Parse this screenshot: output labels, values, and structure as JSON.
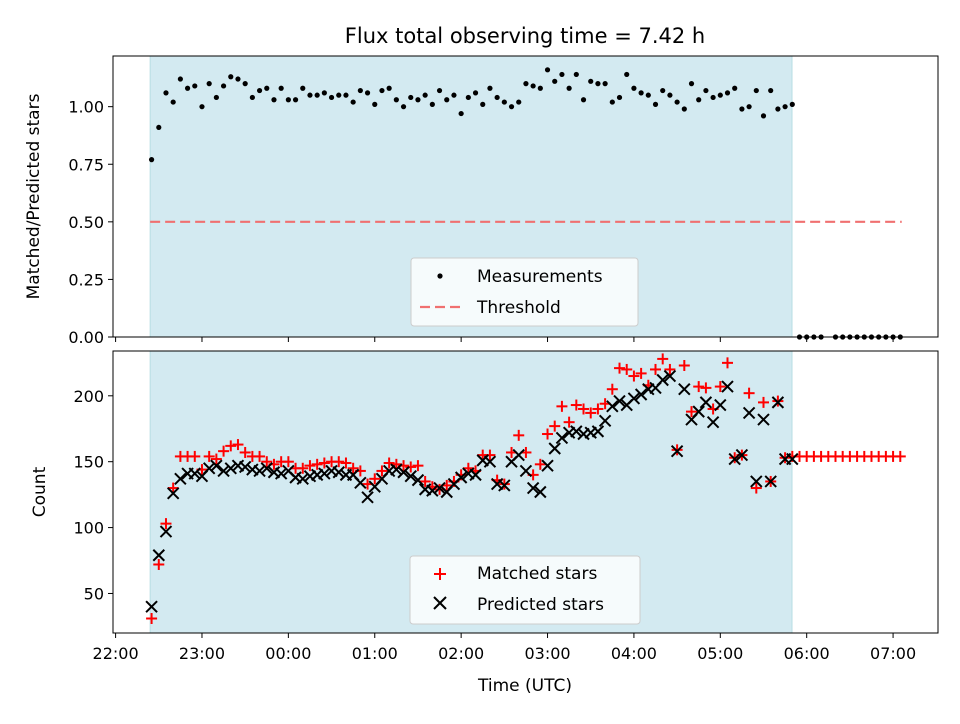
{
  "title": "Flux total observing time = 7.42 h",
  "chart_data": [
    {
      "type": "scatter",
      "ylabel": "Matched/Predicted stars",
      "ylim": [
        0.0,
        1.22
      ],
      "yticks": [
        0.0,
        0.25,
        0.5,
        0.75,
        1.0
      ],
      "ytick_labels": [
        "0.00",
        "0.25",
        "0.50",
        "0.75",
        "1.00"
      ],
      "shaded_interval_hours": [
        22.4,
        5.83
      ],
      "shaded_color": "#d3eaf1",
      "threshold": {
        "name": "Threshold",
        "value": 0.5,
        "x_range_hours": [
          22.4,
          7.1
        ],
        "color": "#f07070"
      },
      "series": [
        {
          "name": "Measurements",
          "color": "#000000",
          "x": [
            "22:25",
            "22:30",
            "22:35",
            "22:40",
            "22:45",
            "22:50",
            "22:55",
            "23:00",
            "23:05",
            "23:10",
            "23:15",
            "23:20",
            "23:25",
            "23:30",
            "23:35",
            "23:40",
            "23:45",
            "23:50",
            "23:55",
            "00:00",
            "00:05",
            "00:10",
            "00:15",
            "00:20",
            "00:25",
            "00:30",
            "00:35",
            "00:40",
            "00:45",
            "00:50",
            "00:55",
            "01:00",
            "01:05",
            "01:10",
            "01:15",
            "01:20",
            "01:25",
            "01:30",
            "01:35",
            "01:40",
            "01:45",
            "01:50",
            "01:55",
            "02:00",
            "02:05",
            "02:10",
            "02:15",
            "02:20",
            "02:25",
            "02:30",
            "02:35",
            "02:40",
            "02:45",
            "02:50",
            "02:55",
            "03:00",
            "03:05",
            "03:10",
            "03:15",
            "03:20",
            "03:25",
            "03:30",
            "03:35",
            "03:40",
            "03:45",
            "03:50",
            "03:55",
            "04:00",
            "04:05",
            "04:10",
            "04:15",
            "04:20",
            "04:25",
            "04:30",
            "04:35",
            "04:40",
            "04:45",
            "04:50",
            "04:55",
            "05:00",
            "05:05",
            "05:10",
            "05:15",
            "05:20",
            "05:25",
            "05:30",
            "05:35",
            "05:40",
            "05:45",
            "05:50",
            "05:55",
            "06:00",
            "06:05",
            "06:10",
            "06:20",
            "06:25",
            "06:30",
            "06:35",
            "06:40",
            "06:45",
            "06:50",
            "06:55",
            "07:00",
            "07:05"
          ],
          "y": [
            0.77,
            0.91,
            1.06,
            1.02,
            1.12,
            1.08,
            1.09,
            1.0,
            1.1,
            1.04,
            1.09,
            1.13,
            1.12,
            1.1,
            1.04,
            1.07,
            1.08,
            1.03,
            1.08,
            1.03,
            1.03,
            1.08,
            1.05,
            1.05,
            1.06,
            1.04,
            1.05,
            1.05,
            1.02,
            1.07,
            1.06,
            1.01,
            1.07,
            1.08,
            1.03,
            1.0,
            1.04,
            1.03,
            1.05,
            1.01,
            1.07,
            1.03,
            1.05,
            0.97,
            1.04,
            1.06,
            1.01,
            1.08,
            1.04,
            1.02,
            1.0,
            1.02,
            1.1,
            1.09,
            1.08,
            1.16,
            1.11,
            1.14,
            1.08,
            1.14,
            1.03,
            1.11,
            1.1,
            1.1,
            1.02,
            1.04,
            1.14,
            1.08,
            1.06,
            1.05,
            1.01,
            1.07,
            1.05,
            1.02,
            0.99,
            1.1,
            1.03,
            1.07,
            1.04,
            1.05,
            1.06,
            1.08,
            0.99,
            1.0,
            1.07,
            0.96,
            1.07,
            0.99,
            1.0,
            1.01,
            0.0,
            0.0,
            0.0,
            0.0,
            0.0,
            0.0,
            0.0,
            0.0,
            0.0,
            0.0,
            0.0,
            0.0,
            0.0,
            0.0
          ]
        }
      ],
      "legend": {
        "placement": "lower center",
        "entries": [
          "Measurements",
          "Threshold"
        ]
      }
    },
    {
      "type": "scatter",
      "xlabel": "Time (UTC)",
      "ylabel": "Count",
      "ylim": [
        20,
        234
      ],
      "yticks": [
        50,
        100,
        150,
        200
      ],
      "ytick_labels": [
        "50",
        "100",
        "150",
        "200"
      ],
      "xticks": [
        "22:00",
        "23:00",
        "00:00",
        "01:00",
        "02:00",
        "03:00",
        "04:00",
        "05:00",
        "06:00",
        "07:00"
      ],
      "xlim_hours": [
        21.97,
        7.52
      ],
      "shaded_interval_hours": [
        22.4,
        5.83
      ],
      "series": [
        {
          "name": "Matched stars",
          "marker": "plus",
          "color": "#ff0000",
          "x": [
            "22:25",
            "22:30",
            "22:35",
            "22:40",
            "22:45",
            "22:50",
            "22:55",
            "23:00",
            "23:05",
            "23:10",
            "23:15",
            "23:20",
            "23:25",
            "23:30",
            "23:35",
            "23:40",
            "23:45",
            "23:50",
            "23:55",
            "00:00",
            "00:05",
            "00:10",
            "00:15",
            "00:20",
            "00:25",
            "00:30",
            "00:35",
            "00:40",
            "00:45",
            "00:50",
            "00:55",
            "01:00",
            "01:05",
            "01:10",
            "01:15",
            "01:20",
            "01:25",
            "01:30",
            "01:35",
            "01:40",
            "01:45",
            "01:50",
            "01:55",
            "02:00",
            "02:05",
            "02:10",
            "02:15",
            "02:20",
            "02:25",
            "02:30",
            "02:35",
            "02:40",
            "02:45",
            "02:50",
            "02:55",
            "03:00",
            "03:05",
            "03:10",
            "03:15",
            "03:20",
            "03:25",
            "03:30",
            "03:35",
            "03:40",
            "03:45",
            "03:50",
            "03:55",
            "04:00",
            "04:05",
            "04:10",
            "04:15",
            "04:20",
            "04:25",
            "04:30",
            "04:35",
            "04:40",
            "04:45",
            "04:50",
            "04:55",
            "05:00",
            "05:05",
            "05:10",
            "05:15",
            "05:20",
            "05:25",
            "05:30",
            "05:35",
            "05:40",
            "05:45",
            "05:50",
            "05:55",
            "06:00",
            "06:05",
            "06:10",
            "06:15",
            "06:20",
            "06:25",
            "06:30",
            "06:35",
            "06:40",
            "06:45",
            "06:50",
            "06:55",
            "07:00",
            "07:05"
          ],
          "y": [
            31,
            72,
            103,
            130,
            154,
            154,
            154,
            144,
            154,
            152,
            158,
            162,
            163,
            157,
            154,
            154,
            150,
            148,
            150,
            150,
            145,
            145,
            147,
            148,
            149,
            150,
            150,
            149,
            145,
            143,
            133,
            137,
            143,
            149,
            148,
            147,
            146,
            147,
            135,
            131,
            129,
            132,
            135,
            140,
            145,
            143,
            155,
            155,
            136,
            133,
            157,
            170,
            157,
            140,
            148,
            171,
            177,
            192,
            180,
            193,
            190,
            187,
            190,
            194,
            205,
            221,
            220,
            215,
            217,
            208,
            220,
            228,
            220,
            159,
            223,
            188,
            207,
            206,
            190,
            207,
            225,
            153,
            155,
            202,
            130,
            195,
            135,
            196,
            153,
            154,
            154,
            154,
            154,
            154,
            154,
            154,
            154,
            154,
            154,
            154,
            154,
            154,
            154,
            154,
            154
          ]
        },
        {
          "name": "Predicted stars",
          "marker": "x",
          "color": "#000000",
          "x": [
            "22:25",
            "22:30",
            "22:35",
            "22:40",
            "22:45",
            "22:50",
            "22:55",
            "23:00",
            "23:05",
            "23:10",
            "23:15",
            "23:20",
            "23:25",
            "23:30",
            "23:35",
            "23:40",
            "23:45",
            "23:50",
            "23:55",
            "00:00",
            "00:05",
            "00:10",
            "00:15",
            "00:20",
            "00:25",
            "00:30",
            "00:35",
            "00:40",
            "00:45",
            "00:50",
            "00:55",
            "01:00",
            "01:05",
            "01:10",
            "01:15",
            "01:20",
            "01:25",
            "01:30",
            "01:35",
            "01:40",
            "01:45",
            "01:50",
            "01:55",
            "02:00",
            "02:05",
            "02:10",
            "02:15",
            "02:20",
            "02:25",
            "02:30",
            "02:35",
            "02:40",
            "02:45",
            "02:50",
            "02:55",
            "03:00",
            "03:05",
            "03:10",
            "03:15",
            "03:20",
            "03:25",
            "03:30",
            "03:35",
            "03:40",
            "03:45",
            "03:50",
            "03:55",
            "04:00",
            "04:05",
            "04:10",
            "04:15",
            "04:20",
            "04:25",
            "04:30",
            "04:35",
            "04:40",
            "04:45",
            "04:50",
            "04:55",
            "05:00",
            "05:05",
            "05:10",
            "05:15",
            "05:20",
            "05:25",
            "05:30",
            "05:35",
            "05:40",
            "05:45",
            "05:50"
          ],
          "y": [
            40,
            79,
            97,
            126,
            137,
            141,
            141,
            139,
            145,
            147,
            143,
            145,
            147,
            146,
            144,
            143,
            145,
            142,
            141,
            143,
            138,
            137,
            139,
            140,
            141,
            143,
            142,
            140,
            140,
            134,
            123,
            131,
            137,
            143,
            144,
            142,
            139,
            136,
            129,
            128,
            130,
            127,
            133,
            138,
            141,
            140,
            151,
            150,
            133,
            132,
            150,
            155,
            143,
            130,
            127,
            147,
            160,
            168,
            172,
            173,
            171,
            172,
            173,
            181,
            192,
            196,
            193,
            198,
            201,
            205,
            206,
            212,
            215,
            158,
            205,
            182,
            188,
            195,
            180,
            193,
            207,
            152,
            155,
            187,
            135,
            182,
            135,
            195,
            152,
            152
          ]
        }
      ],
      "legend": {
        "placement": "lower center",
        "entries": [
          "Matched stars",
          "Predicted stars"
        ]
      }
    }
  ]
}
